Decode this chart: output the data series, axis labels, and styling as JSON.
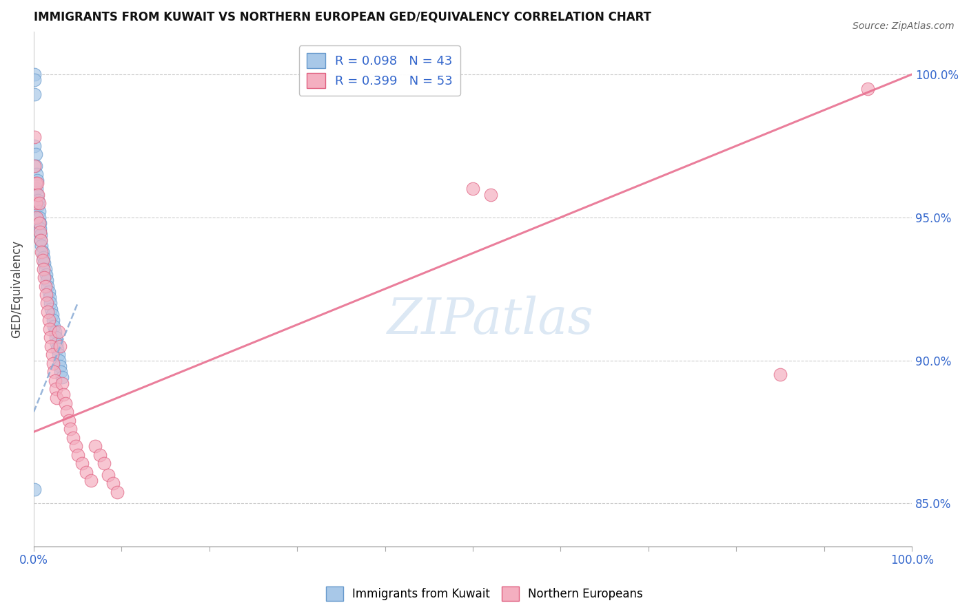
{
  "title": "IMMIGRANTS FROM KUWAIT VS NORTHERN EUROPEAN GED/EQUIVALENCY CORRELATION CHART",
  "source": "Source: ZipAtlas.com",
  "ylabel": "GED/Equivalency",
  "ytick_labels": [
    "85.0%",
    "90.0%",
    "95.0%",
    "100.0%"
  ],
  "ytick_values": [
    0.85,
    0.9,
    0.95,
    1.0
  ],
  "xlim": [
    0.0,
    1.0
  ],
  "ylim": [
    0.835,
    1.015
  ],
  "legend_blue_r": "R = 0.098",
  "legend_blue_n": "N = 43",
  "legend_pink_r": "R = 0.399",
  "legend_pink_n": "N = 53",
  "blue_color": "#a8c8e8",
  "pink_color": "#f4afc0",
  "blue_edge_color": "#6699cc",
  "pink_edge_color": "#e06080",
  "blue_line_color": "#88aad4",
  "pink_line_color": "#e87090",
  "watermark_color": "#dce8f4",
  "blue_scatter_x": [
    0.001,
    0.001,
    0.001,
    0.001,
    0.002,
    0.002,
    0.003,
    0.003,
    0.004,
    0.004,
    0.005,
    0.005,
    0.006,
    0.006,
    0.007,
    0.007,
    0.008,
    0.008,
    0.009,
    0.01,
    0.011,
    0.012,
    0.013,
    0.014,
    0.015,
    0.016,
    0.017,
    0.018,
    0.019,
    0.02,
    0.021,
    0.022,
    0.023,
    0.024,
    0.025,
    0.026,
    0.027,
    0.028,
    0.029,
    0.03,
    0.031,
    0.032,
    0.001
  ],
  "blue_scatter_y": [
    1.0,
    0.998,
    0.993,
    0.975,
    0.972,
    0.968,
    0.965,
    0.96,
    0.963,
    0.958,
    0.956,
    0.954,
    0.952,
    0.95,
    0.948,
    0.946,
    0.944,
    0.942,
    0.94,
    0.938,
    0.936,
    0.934,
    0.932,
    0.93,
    0.928,
    0.926,
    0.924,
    0.922,
    0.92,
    0.918,
    0.916,
    0.914,
    0.912,
    0.91,
    0.908,
    0.906,
    0.904,
    0.902,
    0.9,
    0.898,
    0.896,
    0.894,
    0.855
  ],
  "pink_scatter_x": [
    0.001,
    0.001,
    0.002,
    0.002,
    0.003,
    0.004,
    0.005,
    0.006,
    0.006,
    0.007,
    0.008,
    0.009,
    0.01,
    0.011,
    0.012,
    0.013,
    0.014,
    0.015,
    0.016,
    0.017,
    0.018,
    0.019,
    0.02,
    0.021,
    0.022,
    0.023,
    0.024,
    0.025,
    0.026,
    0.028,
    0.03,
    0.032,
    0.034,
    0.036,
    0.038,
    0.04,
    0.042,
    0.045,
    0.048,
    0.05,
    0.055,
    0.06,
    0.065,
    0.07,
    0.075,
    0.08,
    0.085,
    0.09,
    0.095,
    0.5,
    0.52,
    0.85,
    0.95
  ],
  "pink_scatter_y": [
    0.978,
    0.968,
    0.962,
    0.955,
    0.95,
    0.962,
    0.958,
    0.955,
    0.948,
    0.945,
    0.942,
    0.938,
    0.935,
    0.932,
    0.929,
    0.926,
    0.923,
    0.92,
    0.917,
    0.914,
    0.911,
    0.908,
    0.905,
    0.902,
    0.899,
    0.896,
    0.893,
    0.89,
    0.887,
    0.91,
    0.905,
    0.892,
    0.888,
    0.885,
    0.882,
    0.879,
    0.876,
    0.873,
    0.87,
    0.867,
    0.864,
    0.861,
    0.858,
    0.87,
    0.867,
    0.864,
    0.86,
    0.857,
    0.854,
    0.96,
    0.958,
    0.895,
    0.995
  ],
  "blue_trendline_x": [
    0.0,
    0.05
  ],
  "blue_trendline_y": [
    0.882,
    0.92
  ],
  "pink_trendline_x": [
    0.0,
    1.0
  ],
  "pink_trendline_y": [
    0.875,
    1.0
  ]
}
